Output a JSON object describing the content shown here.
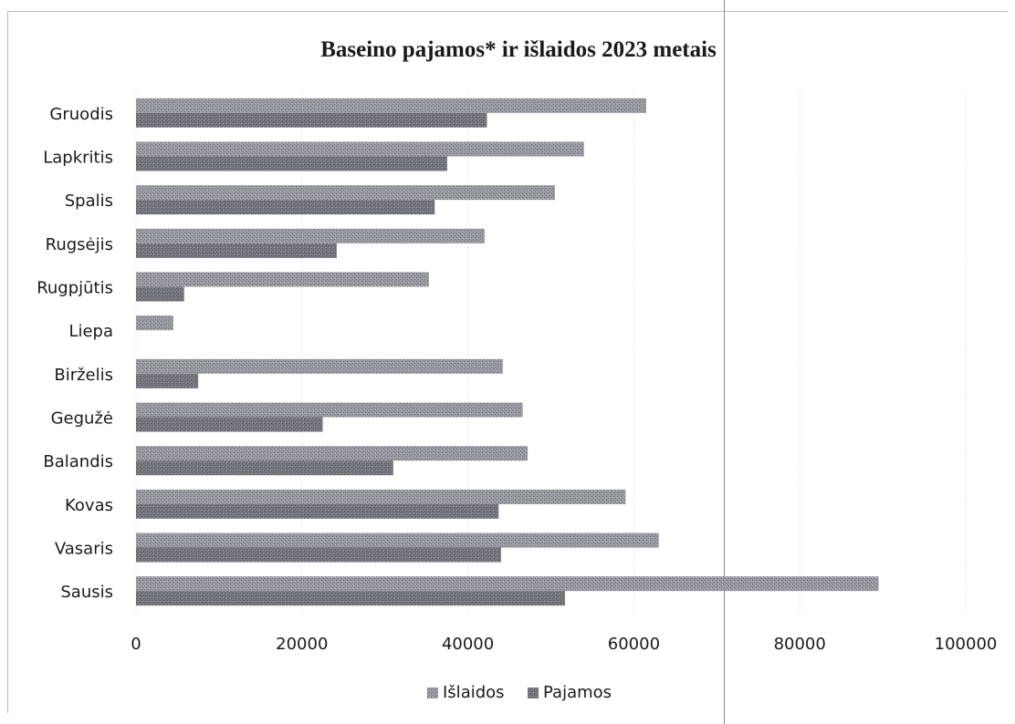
{
  "chart_data": {
    "type": "bar",
    "orientation": "horizontal",
    "title": "Baseino pajamos* ir išlaidos 2023 metais",
    "xlabel": "",
    "ylabel": "",
    "categories": [
      "Sausis",
      "Vasaris",
      "Kovas",
      "Balandis",
      "Gegužė",
      "Birželis",
      "Liepa",
      "Rugpjūtis",
      "Rugsėjis",
      "Spalis",
      "Lapkritis",
      "Gruodis"
    ],
    "series": [
      {
        "name": "Išlaidos",
        "values": [
          89500,
          63000,
          59000,
          47200,
          46600,
          44200,
          4500,
          35300,
          42000,
          50500,
          54000,
          61500
        ]
      },
      {
        "name": "Pajamos",
        "values": [
          51700,
          44000,
          43700,
          31000,
          22500,
          7500,
          0,
          5800,
          24200,
          36000,
          37500,
          42300
        ]
      }
    ],
    "xlim": [
      0,
      100000
    ],
    "xticks": [
      "0",
      "20000",
      "40000",
      "60000",
      "80000",
      "100000"
    ],
    "grid": true,
    "legend": "bottom",
    "colors": {
      "islaidos": "#8e8e96",
      "pajamos": "#6a6a72",
      "grid": "#d6d6d6",
      "text": "#1a1a1a"
    }
  }
}
